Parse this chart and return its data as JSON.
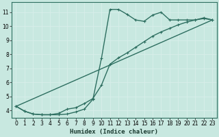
{
  "xlabel": "Humidex (Indice chaleur)",
  "bg_color": "#c8e8e0",
  "grid_color": "#b0d0c8",
  "line_color": "#2d6e60",
  "xlim": [
    -0.5,
    23.5
  ],
  "ylim": [
    3.5,
    11.7
  ],
  "xticks": [
    0,
    1,
    2,
    3,
    4,
    5,
    6,
    7,
    8,
    9,
    10,
    11,
    12,
    13,
    14,
    15,
    16,
    17,
    18,
    19,
    20,
    21,
    22,
    23
  ],
  "yticks": [
    4,
    5,
    6,
    7,
    8,
    9,
    10,
    11
  ],
  "line1_x": [
    0,
    1,
    2,
    3,
    4,
    5,
    6,
    7,
    8,
    9,
    10,
    11,
    12,
    13,
    14,
    15,
    16,
    17,
    18,
    19,
    20,
    21,
    22,
    23
  ],
  "line1_y": [
    4.3,
    3.95,
    3.75,
    3.7,
    3.7,
    3.7,
    3.75,
    3.9,
    4.1,
    4.8,
    7.7,
    11.2,
    11.2,
    10.85,
    10.45,
    10.35,
    10.8,
    11.0,
    10.45,
    10.45,
    10.45,
    10.45,
    10.6,
    10.45
  ],
  "line2_x": [
    0,
    1,
    2,
    3,
    4,
    5,
    6,
    7,
    8,
    9,
    10,
    11,
    12,
    13,
    14,
    15,
    16,
    17,
    18,
    19,
    20,
    21,
    22,
    23
  ],
  "line2_y": [
    4.3,
    3.95,
    3.75,
    3.7,
    3.7,
    3.8,
    4.1,
    4.2,
    4.5,
    4.85,
    5.8,
    7.3,
    7.75,
    8.1,
    8.5,
    8.9,
    9.3,
    9.6,
    9.85,
    10.1,
    10.3,
    10.45,
    10.55,
    10.45
  ],
  "line3_x": [
    0,
    23
  ],
  "line3_y": [
    4.3,
    10.45
  ],
  "marker_size": 2.5,
  "line_width": 1.0
}
